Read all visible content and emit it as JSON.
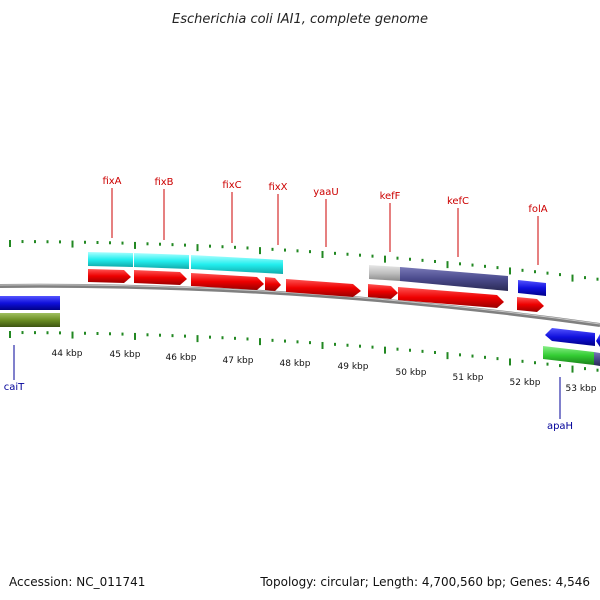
{
  "title": "Escherichia coli IAI1, complete genome",
  "footer": {
    "accession": "Accession: NC_011741",
    "summary": "Topology: circular; Length: 4,700,560 bp; Genes: 4,546"
  },
  "colors": {
    "cds_forward": "#ee0000",
    "cds_reverse": "#1010dd",
    "feature_cyan": "#22eeee",
    "feature_olive": "#6b8e23",
    "feature_green": "#33cc33",
    "feature_gray": "#c0c0c0",
    "feature_slate": "#4a4a8c",
    "backbone": "#808080",
    "tick": "#228822",
    "label_red": "#cc0000",
    "label_blue": "#000099"
  },
  "scale": {
    "ticks": [
      "44 kbp",
      "45 kbp",
      "46 kbp",
      "47 kbp",
      "48 kbp",
      "49 kbp",
      "50 kbp",
      "51 kbp",
      "52 kbp",
      "53 kbp"
    ]
  },
  "gene_labels_top": [
    "fixA",
    "fixB",
    "fixC",
    "fixX",
    "yaaU",
    "kefF",
    "kefC",
    "folA"
  ],
  "gene_labels_bottom": [
    "caiT",
    "apaH"
  ]
}
